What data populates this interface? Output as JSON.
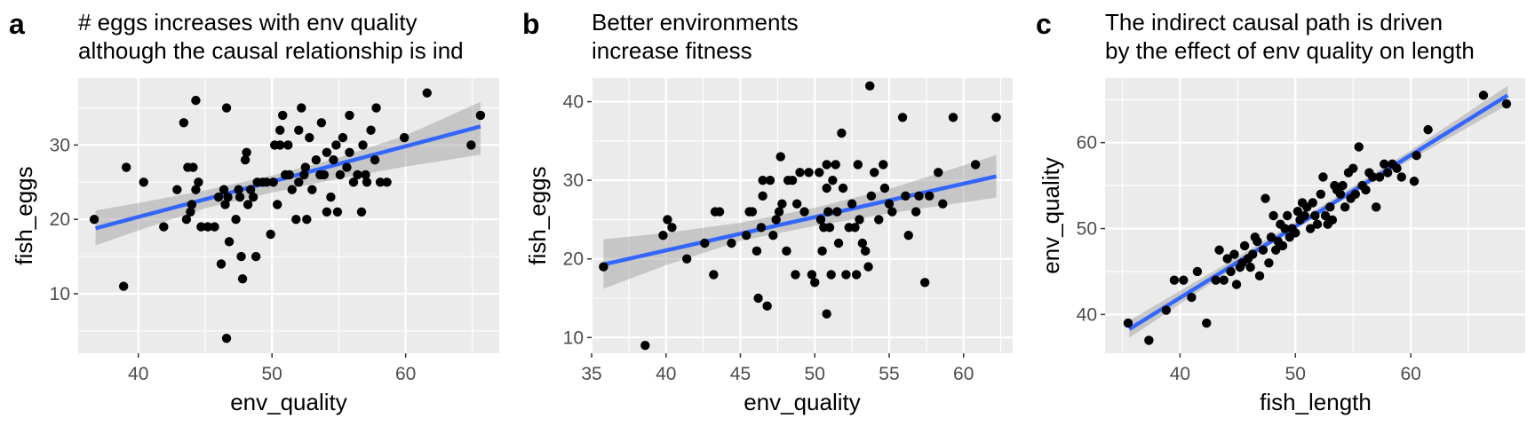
{
  "colors": {
    "panel_bg": "#ebebeb",
    "grid_major": "#ffffff",
    "point": "#000000",
    "fit_line": "#3366ff",
    "ci_band": "#999999",
    "tick_text": "#4d4d4d",
    "label_text": "#000000"
  },
  "chart_data": [
    {
      "type": "scatter",
      "panel_tag": "a",
      "title_lines": [
        "# eggs increases with env quality",
        "although the causal relationship is ind"
      ],
      "xlabel": "env_quality",
      "ylabel": "fish_eggs",
      "xlim": [
        35.5,
        67
      ],
      "ylim": [
        2,
        39
      ],
      "xticks": [
        40,
        50,
        60
      ],
      "yticks": [
        10,
        20,
        30
      ],
      "grid": true,
      "fit": {
        "x": [
          36.8,
          65.6
        ],
        "y": [
          18.8,
          32.5
        ]
      },
      "ci": [
        {
          "x": 36.8,
          "lo": 16.5,
          "hi": 21.2
        },
        {
          "x": 40,
          "lo": 18.5,
          "hi": 22.2
        },
        {
          "x": 45,
          "lo": 21.5,
          "hi": 23.9
        },
        {
          "x": 50,
          "lo": 23.6,
          "hi": 25.9
        },
        {
          "x": 55,
          "lo": 25.5,
          "hi": 28.3
        },
        {
          "x": 60,
          "lo": 27.1,
          "hi": 31.3
        },
        {
          "x": 65.6,
          "lo": 28.7,
          "hi": 35.8
        }
      ],
      "points": [
        [
          36.7,
          20
        ],
        [
          38.9,
          11
        ],
        [
          39.1,
          27
        ],
        [
          40.4,
          25
        ],
        [
          41.9,
          19
        ],
        [
          42.9,
          24
        ],
        [
          43.4,
          33
        ],
        [
          43.6,
          20
        ],
        [
          43.7,
          27
        ],
        [
          43.9,
          21
        ],
        [
          44.0,
          22
        ],
        [
          44.1,
          27
        ],
        [
          44.3,
          36
        ],
        [
          44.3,
          24
        ],
        [
          44.7,
          19
        ],
        [
          44.5,
          25
        ],
        [
          45.2,
          19
        ],
        [
          45.7,
          19
        ],
        [
          46.0,
          23
        ],
        [
          46.2,
          14
        ],
        [
          46.4,
          24
        ],
        [
          46.6,
          35
        ],
        [
          46.7,
          23
        ],
        [
          46.5,
          22
        ],
        [
          46.6,
          4
        ],
        [
          46.8,
          17
        ],
        [
          47.3,
          20
        ],
        [
          47.5,
          24
        ],
        [
          47.6,
          23
        ],
        [
          47.7,
          15
        ],
        [
          47.8,
          12
        ],
        [
          48.0,
          28
        ],
        [
          48.1,
          29
        ],
        [
          48.2,
          22
        ],
        [
          48.4,
          24
        ],
        [
          48.6,
          23
        ],
        [
          48.8,
          15
        ],
        [
          48.9,
          25
        ],
        [
          49.3,
          25
        ],
        [
          49.6,
          25
        ],
        [
          49.9,
          18
        ],
        [
          50.1,
          25
        ],
        [
          50.2,
          30
        ],
        [
          50.4,
          22
        ],
        [
          50.6,
          30
        ],
        [
          50.6,
          32
        ],
        [
          50.8,
          34
        ],
        [
          51.0,
          26
        ],
        [
          51.2,
          30
        ],
        [
          51.3,
          26
        ],
        [
          51.5,
          24
        ],
        [
          51.8,
          20
        ],
        [
          52.0,
          25
        ],
        [
          52.0,
          32
        ],
        [
          52.2,
          35
        ],
        [
          52.4,
          26
        ],
        [
          52.5,
          27
        ],
        [
          52.6,
          20
        ],
        [
          52.8,
          31
        ],
        [
          53.0,
          24
        ],
        [
          53.3,
          28
        ],
        [
          53.6,
          26
        ],
        [
          53.7,
          33
        ],
        [
          53.9,
          26
        ],
        [
          54.1,
          29
        ],
        [
          54.1,
          21
        ],
        [
          54.4,
          23
        ],
        [
          54.6,
          28
        ],
        [
          54.8,
          30
        ],
        [
          54.9,
          21
        ],
        [
          55.1,
          26
        ],
        [
          55.3,
          31
        ],
        [
          55.6,
          27
        ],
        [
          55.8,
          29
        ],
        [
          55.8,
          34
        ],
        [
          56.1,
          25
        ],
        [
          56.4,
          26
        ],
        [
          56.7,
          21
        ],
        [
          56.8,
          30
        ],
        [
          57.0,
          26
        ],
        [
          57.1,
          25
        ],
        [
          57.4,
          32
        ],
        [
          57.7,
          28
        ],
        [
          57.8,
          35
        ],
        [
          58.1,
          25
        ],
        [
          58.6,
          25
        ],
        [
          59.9,
          31
        ],
        [
          61.6,
          37
        ],
        [
          64.9,
          30
        ],
        [
          65.6,
          34
        ]
      ]
    },
    {
      "type": "scatter",
      "panel_tag": "b",
      "title_lines": [
        "Better environments",
        "increase fitness"
      ],
      "xlabel": "env_quality",
      "ylabel": "fish_eggs",
      "xlim": [
        35,
        63.3
      ],
      "ylim": [
        8,
        43
      ],
      "xticks": [
        35,
        40,
        45,
        50,
        55,
        60
      ],
      "yticks": [
        10,
        20,
        30,
        40
      ],
      "grid": true,
      "fit": {
        "x": [
          35.8,
          62.2
        ],
        "y": [
          19.3,
          30.5
        ]
      },
      "ci": [
        {
          "x": 35.8,
          "lo": 16.2,
          "hi": 22.5
        },
        {
          "x": 40,
          "lo": 19.2,
          "hi": 23.3
        },
        {
          "x": 45,
          "lo": 22.3,
          "hi": 24.6
        },
        {
          "x": 50,
          "lo": 24.2,
          "hi": 26.5
        },
        {
          "x": 55,
          "lo": 25.8,
          "hi": 28.9
        },
        {
          "x": 62.2,
          "lo": 27.8,
          "hi": 33.2
        }
      ],
      "points": [
        [
          35.8,
          19
        ],
        [
          38.6,
          9
        ],
        [
          39.8,
          23
        ],
        [
          40.1,
          25
        ],
        [
          40.4,
          24
        ],
        [
          41.4,
          20
        ],
        [
          42.6,
          22
        ],
        [
          43.2,
          18
        ],
        [
          43.3,
          26
        ],
        [
          43.6,
          26
        ],
        [
          44.4,
          22
        ],
        [
          45.4,
          23
        ],
        [
          45.6,
          26
        ],
        [
          45.8,
          26
        ],
        [
          46.1,
          21
        ],
        [
          46.2,
          15
        ],
        [
          46.4,
          24
        ],
        [
          46.5,
          30
        ],
        [
          46.5,
          28
        ],
        [
          46.8,
          14
        ],
        [
          47.0,
          30
        ],
        [
          47.2,
          23
        ],
        [
          47.4,
          25
        ],
        [
          47.6,
          26
        ],
        [
          47.7,
          33
        ],
        [
          47.8,
          27
        ],
        [
          48.1,
          21
        ],
        [
          48.2,
          30
        ],
        [
          48.5,
          30
        ],
        [
          48.7,
          18
        ],
        [
          48.8,
          27
        ],
        [
          49.0,
          31
        ],
        [
          49.3,
          26
        ],
        [
          49.6,
          31
        ],
        [
          49.8,
          18
        ],
        [
          50.0,
          17
        ],
        [
          50.3,
          31
        ],
        [
          50.4,
          25
        ],
        [
          50.5,
          21
        ],
        [
          50.6,
          24
        ],
        [
          50.8,
          32
        ],
        [
          50.8,
          29
        ],
        [
          50.8,
          13
        ],
        [
          50.9,
          26
        ],
        [
          51.0,
          24
        ],
        [
          51.1,
          18
        ],
        [
          51.2,
          30
        ],
        [
          51.4,
          32
        ],
        [
          51.5,
          26
        ],
        [
          51.6,
          22
        ],
        [
          51.8,
          36
        ],
        [
          51.9,
          29
        ],
        [
          52.1,
          18
        ],
        [
          52.3,
          24
        ],
        [
          52.5,
          27
        ],
        [
          52.7,
          24
        ],
        [
          52.8,
          18
        ],
        [
          52.9,
          32
        ],
        [
          53.0,
          25
        ],
        [
          53.2,
          22
        ],
        [
          53.4,
          21
        ],
        [
          53.6,
          19
        ],
        [
          53.7,
          42
        ],
        [
          53.8,
          28
        ],
        [
          54.0,
          31
        ],
        [
          54.3,
          25
        ],
        [
          54.6,
          32
        ],
        [
          54.7,
          29
        ],
        [
          55.0,
          27
        ],
        [
          55.2,
          26
        ],
        [
          55.9,
          38
        ],
        [
          56.1,
          28
        ],
        [
          56.3,
          23
        ],
        [
          56.8,
          26
        ],
        [
          57.0,
          28
        ],
        [
          57.4,
          17
        ],
        [
          57.7,
          28
        ],
        [
          58.3,
          31
        ],
        [
          58.6,
          27
        ],
        [
          59.3,
          38
        ],
        [
          60.8,
          32
        ],
        [
          62.2,
          38
        ]
      ]
    },
    {
      "type": "scatter",
      "panel_tag": "c",
      "title_lines": [
        "The indirect causal path is driven",
        "by the effect of env quality on length"
      ],
      "xlabel": "fish_length",
      "ylabel": "env_quality",
      "xlim": [
        33.5,
        70
      ],
      "ylim": [
        35.5,
        67.5
      ],
      "xticks": [
        40,
        50,
        60
      ],
      "yticks": [
        40,
        50,
        60
      ],
      "grid": true,
      "fit": {
        "x": [
          35.6,
          68.4
        ],
        "y": [
          38.3,
          65.5
        ]
      },
      "ci": [
        {
          "x": 35.6,
          "lo": 37.3,
          "hi": 39.3
        },
        {
          "x": 45,
          "lo": 45.7,
          "hi": 46.7
        },
        {
          "x": 52,
          "lo": 51.7,
          "hi": 52.4
        },
        {
          "x": 60,
          "lo": 58.0,
          "hi": 59.1
        },
        {
          "x": 68.4,
          "lo": 64.4,
          "hi": 66.6
        }
      ],
      "points": [
        [
          35.5,
          39
        ],
        [
          37.3,
          37
        ],
        [
          38.8,
          40.5
        ],
        [
          39.5,
          44
        ],
        [
          40.3,
          44
        ],
        [
          41.0,
          42
        ],
        [
          41.5,
          45
        ],
        [
          42.3,
          39
        ],
        [
          43.1,
          44
        ],
        [
          43.4,
          47.5
        ],
        [
          43.8,
          44
        ],
        [
          44.1,
          46.5
        ],
        [
          44.4,
          45
        ],
        [
          44.7,
          47
        ],
        [
          44.9,
          43.5
        ],
        [
          45.2,
          45.5
        ],
        [
          45.4,
          46
        ],
        [
          45.6,
          48
        ],
        [
          45.9,
          46.5
        ],
        [
          46.1,
          45.5
        ],
        [
          46.3,
          47
        ],
        [
          46.5,
          49
        ],
        [
          46.7,
          48.5
        ],
        [
          46.9,
          44.5
        ],
        [
          47.2,
          47.5
        ],
        [
          47.4,
          53.5
        ],
        [
          47.7,
          46
        ],
        [
          47.9,
          49
        ],
        [
          48.1,
          51.5
        ],
        [
          48.3,
          47.5
        ],
        [
          48.5,
          48.5
        ],
        [
          48.7,
          50.5
        ],
        [
          48.9,
          48
        ],
        [
          49.1,
          50
        ],
        [
          49.3,
          51.5
        ],
        [
          49.5,
          49
        ],
        [
          49.7,
          50
        ],
        [
          50.0,
          49.5
        ],
        [
          50.2,
          52
        ],
        [
          50.4,
          51
        ],
        [
          50.6,
          53
        ],
        [
          50.8,
          51.5
        ],
        [
          51.0,
          52.5
        ],
        [
          51.3,
          50
        ],
        [
          51.5,
          53
        ],
        [
          51.7,
          51.5
        ],
        [
          51.9,
          50.5
        ],
        [
          52.2,
          54
        ],
        [
          52.4,
          56
        ],
        [
          52.6,
          51.5
        ],
        [
          52.8,
          50.5
        ],
        [
          53.0,
          52.5
        ],
        [
          53.2,
          51
        ],
        [
          53.4,
          55
        ],
        [
          53.6,
          54.5
        ],
        [
          53.9,
          54
        ],
        [
          54.1,
          55
        ],
        [
          54.3,
          52.5
        ],
        [
          54.6,
          56.5
        ],
        [
          54.8,
          53.5
        ],
        [
          55.0,
          57
        ],
        [
          55.2,
          54
        ],
        [
          55.5,
          59.5
        ],
        [
          55.8,
          55
        ],
        [
          56.1,
          54.5
        ],
        [
          56.4,
          56.5
        ],
        [
          56.7,
          56
        ],
        [
          57.0,
          52.5
        ],
        [
          57.3,
          56
        ],
        [
          57.7,
          57.5
        ],
        [
          58.0,
          56.5
        ],
        [
          58.4,
          57.5
        ],
        [
          58.8,
          57
        ],
        [
          59.2,
          56
        ],
        [
          60.3,
          55.5
        ],
        [
          60.5,
          58.5
        ],
        [
          61.5,
          61.5
        ],
        [
          66.3,
          65.5
        ],
        [
          68.3,
          64.5
        ]
      ]
    }
  ]
}
